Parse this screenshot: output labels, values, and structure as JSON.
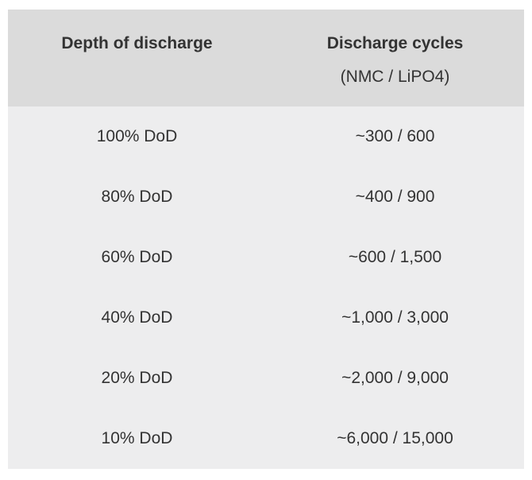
{
  "table": {
    "header": {
      "col1_title": "Depth of discharge",
      "col2_title": "Discharge cycles",
      "col2_subtitle": "(NMC / LiPO4)"
    },
    "rows": [
      {
        "dod": "100% DoD",
        "cycles": "~300 / 600"
      },
      {
        "dod": "80% DoD",
        "cycles": "~400 / 900"
      },
      {
        "dod": "60% DoD",
        "cycles": "~600 / 1,500"
      },
      {
        "dod": "40% DoD",
        "cycles": "~1,000 / 3,000"
      },
      {
        "dod": "20% DoD",
        "cycles": "~2,000 / 9,000"
      },
      {
        "dod": "10% DoD",
        "cycles": "~6,000 / 15,000"
      }
    ]
  },
  "colors": {
    "page_background": "#ffffff",
    "header_background": "#dbdbdb",
    "body_background": "#ededee",
    "text": "#333333"
  },
  "chart_data": {
    "type": "table",
    "title": "Discharge cycles by depth of discharge (NMC / LiPO4)",
    "columns": [
      "Depth of discharge",
      "Discharge cycles (NMC / LiPO4)"
    ],
    "rows": [
      [
        "100% DoD",
        "~300 / 600"
      ],
      [
        "80% DoD",
        "~400 / 900"
      ],
      [
        "60% DoD",
        "~600 / 1,500"
      ],
      [
        "40% DoD",
        "~1,000 / 3,000"
      ],
      [
        "20% DoD",
        "~2,000 / 9,000"
      ],
      [
        "10% DoD",
        "~6,000 / 15,000"
      ]
    ],
    "series": [
      {
        "name": "NMC cycles",
        "x_dod_percent": [
          100,
          80,
          60,
          40,
          20,
          10
        ],
        "values": [
          300,
          400,
          600,
          1000,
          2000,
          6000
        ]
      },
      {
        "name": "LiPO4 cycles",
        "x_dod_percent": [
          100,
          80,
          60,
          40,
          20,
          10
        ],
        "values": [
          600,
          900,
          1500,
          3000,
          9000,
          15000
        ]
      }
    ]
  }
}
